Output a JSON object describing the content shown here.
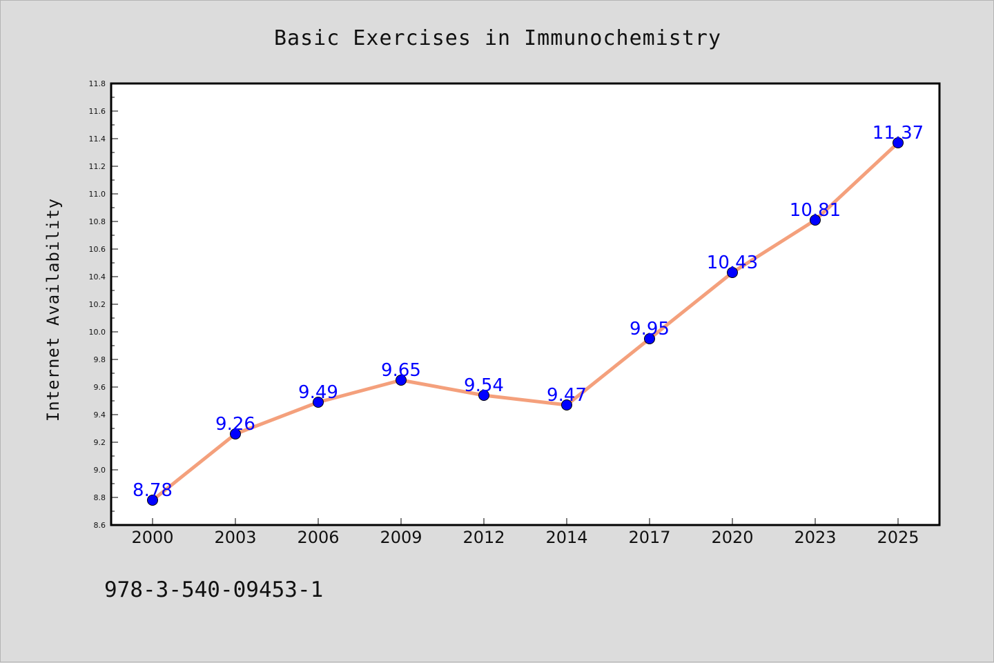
{
  "chart_data": {
    "type": "line",
    "title": "Basic Exercises in Immunochemistry",
    "xlabel": "",
    "ylabel": "Internet Availability",
    "categories": [
      "2000",
      "2003",
      "2006",
      "2009",
      "2012",
      "2014",
      "2017",
      "2020",
      "2023",
      "2025"
    ],
    "series": [
      {
        "values": [
          8.78,
          9.26,
          9.49,
          9.65,
          9.54,
          9.47,
          9.95,
          10.43,
          10.81,
          11.37
        ]
      }
    ],
    "data_labels": [
      "8.78",
      "9.26",
      "9.49",
      "9.65",
      "9.54",
      "9.47",
      "9.95",
      "10.43",
      "10.81",
      "11.37"
    ],
    "ylim": [
      8.6,
      11.8
    ],
    "yticks": [
      "8.6",
      "8.8",
      "9.0",
      "9.2",
      "9.4",
      "9.6",
      "9.8",
      "10.0",
      "10.2",
      "10.4",
      "10.6",
      "10.8",
      "11.0",
      "11.2",
      "11.4",
      "11.6",
      "11.8"
    ],
    "grid": false,
    "colors": {
      "line": "#f4a07c",
      "marker": "#0000ff",
      "labels": "#0000ff",
      "plot_bg": "#ffffff",
      "figure_bg": "#dcdcdc"
    }
  },
  "footer": {
    "text": "978-3-540-09453-1"
  }
}
